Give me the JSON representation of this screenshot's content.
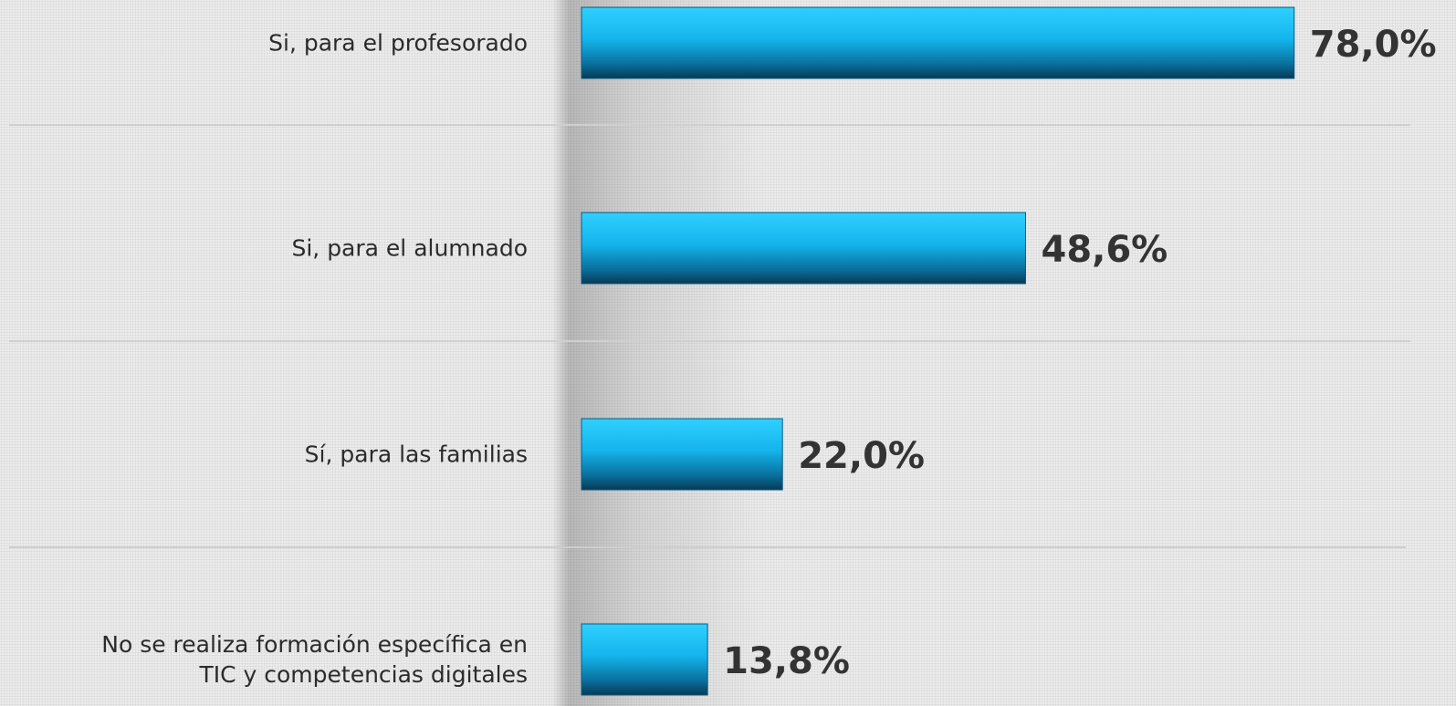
{
  "chart_data": {
    "type": "bar",
    "orientation": "horizontal",
    "categories": [
      "Si, para el profesorado",
      "Si, para el alumnado",
      "Sí, para las familias",
      "No se realiza formación específica en\nTIC y competencias digitales"
    ],
    "values": [
      78.0,
      48.6,
      22.0,
      13.8
    ],
    "value_labels": [
      "78,0%",
      "48,6%",
      "22,0%",
      "13,8%"
    ],
    "color": "#1ab8ee"
  }
}
